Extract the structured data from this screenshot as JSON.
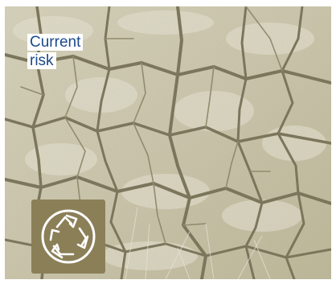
{
  "label": {
    "line1": "Current",
    "line2": "risk"
  },
  "icon": {
    "name": "recycle-globe-icon"
  },
  "colors": {
    "label_text": "#1c4a8a",
    "badge_background": "#8b7f58",
    "photo_tone": "#cfcbb2"
  }
}
